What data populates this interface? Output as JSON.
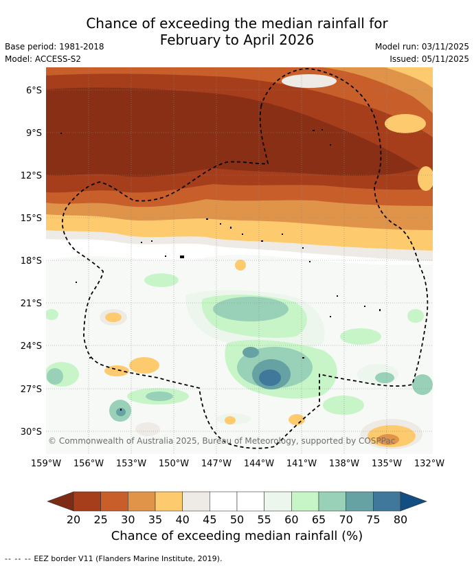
{
  "header": {
    "title_line1": "Chance of exceeding the median rainfall for",
    "title_line2": "February to April 2026",
    "base_period": "Base period: 1981-2018",
    "model": "Model: ACCESS-S2",
    "model_run": "Model run: 03/11/2025",
    "issued": "Issued: 05/11/2025"
  },
  "map": {
    "lat_labels": [
      "6°S",
      "9°S",
      "12°S",
      "15°S",
      "18°S",
      "21°S",
      "24°S",
      "27°S",
      "30°S"
    ],
    "lon_labels": [
      "159°W",
      "156°W",
      "153°W",
      "150°W",
      "147°W",
      "144°W",
      "141°W",
      "138°W",
      "135°W",
      "132°W"
    ],
    "copyright": "© Commonwealth of Australia 2025, Bureau of Meteorology, supported by COSPPac"
  },
  "colorbar": {
    "ticks": [
      "20",
      "25",
      "30",
      "35",
      "40",
      "45",
      "50",
      "55",
      "60",
      "65",
      "70",
      "75",
      "80"
    ],
    "colors": [
      "#7d2b14",
      "#a63e1c",
      "#c85f2a",
      "#e0944a",
      "#fdcb6e",
      "#eeeae6",
      "#ffffff",
      "#ffffff",
      "#ecf6ec",
      "#c8f5c8",
      "#98d1b7",
      "#66a1a4",
      "#3f789a",
      "#134e83"
    ],
    "label": "Chance of exceeding median rainfall (%)"
  },
  "legend": {
    "border_symbol": "-- -- --",
    "border_text": "EEZ border V11 (Flanders Marine Institute, 2019)."
  }
}
